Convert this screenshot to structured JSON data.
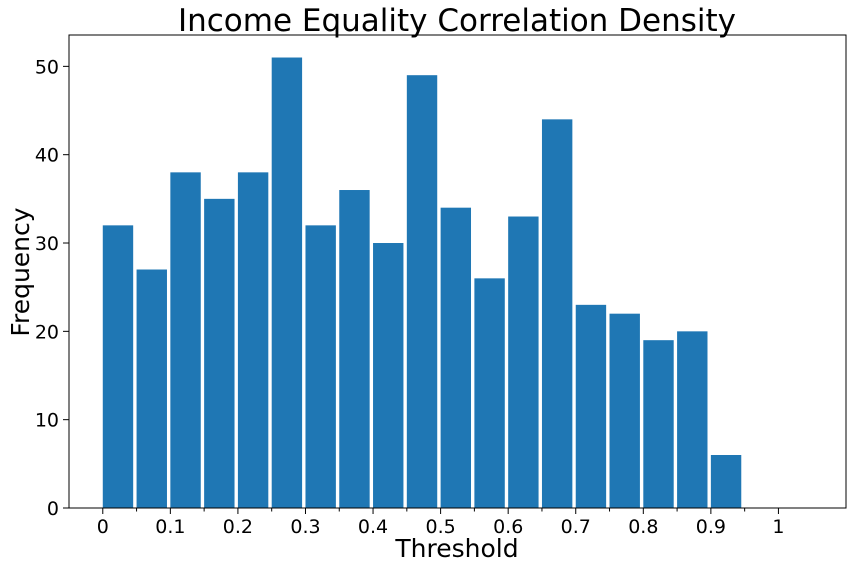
{
  "chart_data": {
    "type": "bar",
    "title": "Income Equality Correlation Density",
    "xlabel": "Threshold",
    "ylabel": "Frequency",
    "bin_width": 0.05,
    "categories": [
      "0",
      "0.05",
      "0.1",
      "0.15",
      "0.2",
      "0.25",
      "0.3",
      "0.35",
      "0.4",
      "0.45",
      "0.5",
      "0.55",
      "0.6",
      "0.65",
      "0.7",
      "0.75",
      "0.8",
      "0.85",
      "0.9",
      "0.95"
    ],
    "x": [
      0,
      0.05,
      0.1,
      0.15,
      0.2,
      0.25,
      0.3,
      0.35,
      0.4,
      0.45,
      0.5,
      0.55,
      0.6,
      0.65,
      0.7,
      0.75,
      0.8,
      0.85,
      0.9,
      0.95
    ],
    "values": [
      32,
      27,
      38,
      35,
      38,
      51,
      32,
      36,
      30,
      49,
      34,
      26,
      33,
      44,
      23,
      22,
      19,
      20,
      6,
      0
    ],
    "xlim": [
      -0.05,
      1.1
    ],
    "ylim": [
      0,
      53.55
    ],
    "xticks": [
      0,
      0.1,
      0.2,
      0.3,
      0.4,
      0.5,
      0.6,
      0.7,
      0.8,
      0.9,
      1
    ],
    "xtick_labels": [
      "0",
      "0.1",
      "0.2",
      "0.3",
      "0.4",
      "0.5",
      "0.6",
      "0.7",
      "0.8",
      "0.9",
      "1"
    ],
    "minor_xticks": [
      0.05,
      0.15,
      0.25,
      0.35,
      0.45,
      0.55,
      0.65,
      0.75,
      0.85,
      0.95
    ],
    "yticks": [
      0,
      10,
      20,
      30,
      40,
      50
    ],
    "ytick_labels": [
      "0",
      "10",
      "20",
      "30",
      "40",
      "50"
    ],
    "bar_color": "#1f77b4",
    "grid": false,
    "legend": "none"
  }
}
